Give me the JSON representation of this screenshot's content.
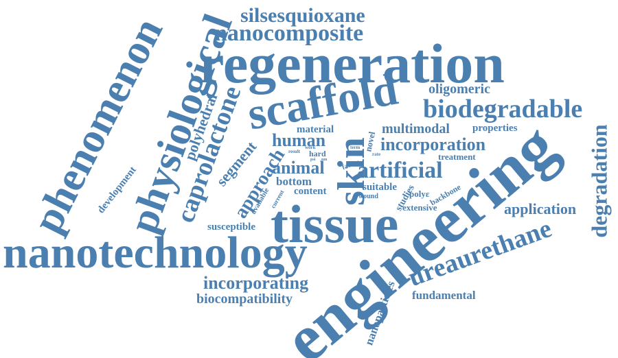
{
  "color": "#4a7fb0",
  "words": [
    {
      "id": "regeneration",
      "text": "regeneration"
    },
    {
      "id": "nanotechnology",
      "text": "nanotechnology"
    },
    {
      "id": "engineering",
      "text": "engineering"
    },
    {
      "id": "tissue",
      "text": "tissue"
    },
    {
      "id": "scaffold",
      "text": "scaffold"
    },
    {
      "id": "phenomenon",
      "text": "phenomenon"
    },
    {
      "id": "physiological",
      "text": "physiological"
    },
    {
      "id": "nanocomposite",
      "text": "nanocomposite"
    },
    {
      "id": "silsesquioxane",
      "text": "silsesquioxane"
    },
    {
      "id": "biodegradable",
      "text": "biodegradable"
    },
    {
      "id": "oligomeric",
      "text": "oligomeric"
    },
    {
      "id": "caprolactone",
      "text": "caprolactone"
    },
    {
      "id": "polyhedral",
      "text": "polyhedral"
    },
    {
      "id": "skin",
      "text": "skin"
    },
    {
      "id": "multimodal",
      "text": "multimodal"
    },
    {
      "id": "properties",
      "text": "properties"
    },
    {
      "id": "material",
      "text": "material"
    },
    {
      "id": "human",
      "text": "human"
    },
    {
      "id": "incorporation",
      "text": "incorporation"
    },
    {
      "id": "treatment",
      "text": "treatment"
    },
    {
      "id": "segment",
      "text": "segment"
    },
    {
      "id": "approach",
      "text": "approach"
    },
    {
      "id": "animal",
      "text": "animal"
    },
    {
      "id": "artificial",
      "text": "artificial"
    },
    {
      "id": "bottom",
      "text": "bottom"
    },
    {
      "id": "content",
      "text": "content"
    },
    {
      "id": "suitable",
      "text": "suitable"
    },
    {
      "id": "novel",
      "text": "novel"
    },
    {
      "id": "wound",
      "text": "wound"
    },
    {
      "id": "polyc",
      "text": "polyε"
    },
    {
      "id": "studies",
      "text": "studies"
    },
    {
      "id": "backbone",
      "text": "backbone"
    },
    {
      "id": "extensive",
      "text": "extensive"
    },
    {
      "id": "application",
      "text": "application"
    },
    {
      "id": "degradation",
      "text": "degradation"
    },
    {
      "id": "ureaurethane",
      "text": "ureaurethane"
    },
    {
      "id": "susceptible",
      "text": "susceptible"
    },
    {
      "id": "available",
      "text": "available"
    },
    {
      "id": "current",
      "text": "current"
    },
    {
      "id": "development",
      "text": "development"
    },
    {
      "id": "incorporating",
      "text": "incorporating"
    },
    {
      "id": "biocompatibility",
      "text": "biocompatibility"
    },
    {
      "id": "nanoparticles",
      "text": "nanoparticles"
    },
    {
      "id": "fundamental",
      "text": "fundamental"
    },
    {
      "id": "hard",
      "text": "hard"
    },
    {
      "id": "result",
      "text": "result"
    },
    {
      "id": "work",
      "text": "work"
    },
    {
      "id": "term",
      "text": "term"
    },
    {
      "id": "factor",
      "text": "factor"
    },
    {
      "id": "rate",
      "text": "rate"
    },
    {
      "id": "psi",
      "text": "psi"
    },
    {
      "id": "nm",
      "text": "nm"
    }
  ]
}
